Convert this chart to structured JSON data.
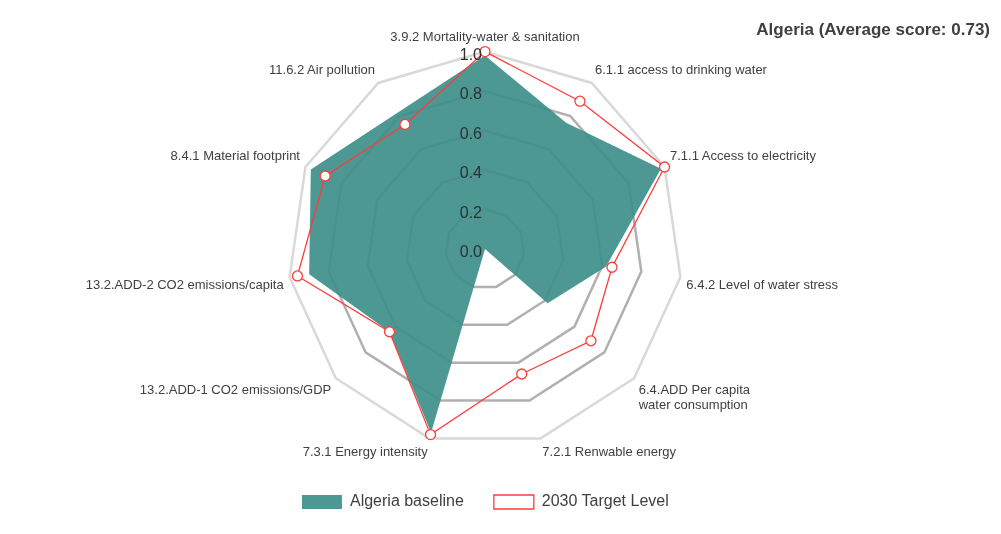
{
  "chart_data": {
    "type": "radar",
    "title": "Algeria (Average score: 0.73)",
    "categories": [
      "3.9.2 Mortality-water & sanitation",
      "6.1.1 access to drinking water",
      "7.1.1 Access to electricity",
      "6.4.2 Level of water stress",
      "6.4.ADD Per capita water consumption",
      "7.2.1 Renwable energy",
      "7.3.1 Energy intensity",
      "13.2.ADD-1 CO2 emissions/GDP",
      "13.2.ADD-2 CO2 emissions/capita",
      "8.4.1 Material footprint",
      "11.6.2 Air pollution"
    ],
    "series": [
      {
        "name": "Algeria baseline",
        "color": "#3f8f8b",
        "marker": "none",
        "values": [
          0.98,
          0.76,
          0.98,
          0.62,
          0.42,
          0,
          0.97,
          0.64,
          0.9,
          0.97,
          0.82
        ]
      },
      {
        "name": "2030 Target Level",
        "color": "#ff3b3b",
        "marker": "circle",
        "values": [
          1.0,
          0.89,
          1.0,
          0.65,
          0.71,
          0.66,
          0.98,
          0.64,
          0.96,
          0.89,
          0.75
        ]
      }
    ],
    "ylim": [
      0,
      1
    ],
    "yticks": [
      {
        "value": 0,
        "label": "0.0"
      },
      {
        "value": 0.2,
        "label": "0.2"
      },
      {
        "value": 0.4,
        "label": "0.4"
      },
      {
        "value": 0.6,
        "label": "0.6"
      },
      {
        "value": 0.8,
        "label": "0.8"
      },
      {
        "value": 1,
        "label": "1.0"
      }
    ],
    "grid": true,
    "legend": "bottom"
  }
}
